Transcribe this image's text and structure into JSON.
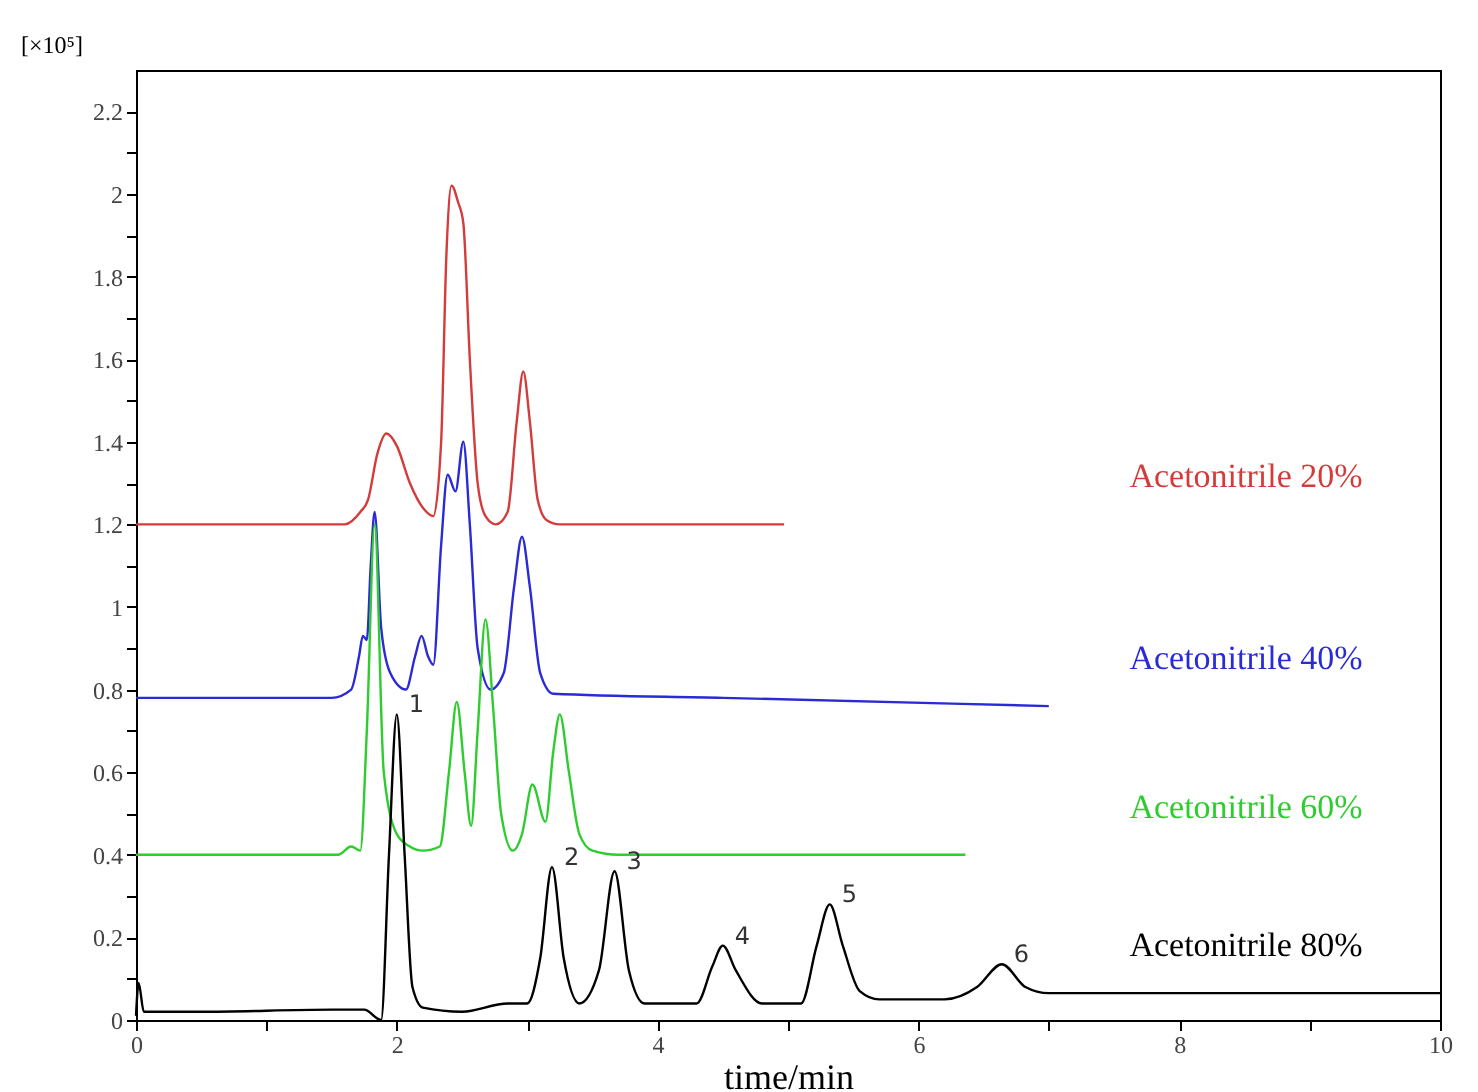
{
  "chart_data": {
    "type": "line",
    "xlabel": "time/min",
    "ylabel": "[×10⁵]",
    "xlim": [
      0,
      10
    ],
    "ylim": [
      0,
      2.3
    ],
    "xticks": [
      0,
      {
        "value": 1,
        "label": null
      },
      2,
      {
        "value": 3,
        "label": null
      },
      4,
      {
        "value": 5,
        "label": null
      },
      6,
      {
        "value": 7,
        "label": null
      },
      8,
      {
        "value": 9,
        "label": null
      },
      10
    ],
    "yticks": [
      0,
      {
        "value": 0.1,
        "label": null
      },
      0.2,
      {
        "value": 0.3,
        "label": null
      },
      0.4,
      {
        "value": 0.5,
        "label": null
      },
      0.6,
      {
        "value": 0.7,
        "label": null
      },
      0.8,
      {
        "value": 0.9,
        "label": null
      },
      1,
      {
        "value": 1.1,
        "label": null
      },
      1.2,
      {
        "value": 1.3,
        "label": null
      },
      1.4,
      {
        "value": 1.5,
        "label": null
      },
      1.6,
      {
        "value": 1.7,
        "label": null
      },
      1.8,
      {
        "value": 1.9,
        "label": null
      },
      2,
      {
        "value": 2.1,
        "label": null
      },
      2.2
    ],
    "grid": false,
    "legend": false,
    "marker": "none",
    "line_style": "solid",
    "series": [
      {
        "name": "Acetonitrile 20%",
        "color": "#d43c3c",
        "x": [
          0,
          1.6,
          1.72,
          1.78,
          1.85,
          1.92,
          2.0,
          2.1,
          2.2,
          2.28,
          2.34,
          2.38,
          2.42,
          2.47,
          2.51,
          2.56,
          2.62,
          2.68,
          2.76,
          2.85,
          2.92,
          2.97,
          3.02,
          3.08,
          3.15,
          3.25,
          4.97
        ],
        "values": [
          1.2,
          1.2,
          1.23,
          1.26,
          1.37,
          1.42,
          1.39,
          1.3,
          1.24,
          1.22,
          1.4,
          1.85,
          2.02,
          1.98,
          1.93,
          1.6,
          1.3,
          1.22,
          1.2,
          1.23,
          1.45,
          1.57,
          1.45,
          1.26,
          1.21,
          1.2,
          1.2
        ]
      },
      {
        "name": "Acetonitrile 40%",
        "color": "#2a2ad6",
        "x": [
          0,
          1.5,
          1.65,
          1.71,
          1.74,
          1.77,
          1.8,
          1.83,
          1.88,
          1.95,
          2.07,
          2.14,
          2.19,
          2.24,
          2.28,
          2.34,
          2.39,
          2.45,
          2.51,
          2.56,
          2.62,
          2.72,
          2.82,
          2.9,
          2.96,
          3.02,
          3.1,
          3.2,
          4.5,
          7.0
        ],
        "values": [
          0.78,
          0.78,
          0.8,
          0.88,
          0.93,
          0.92,
          1.1,
          1.23,
          0.95,
          0.84,
          0.8,
          0.88,
          0.93,
          0.88,
          0.86,
          1.15,
          1.32,
          1.28,
          1.4,
          1.2,
          0.9,
          0.8,
          0.84,
          1.05,
          1.17,
          1.05,
          0.84,
          0.79,
          0.78,
          0.76
        ]
      },
      {
        "name": "Acetonitrile 60%",
        "color": "#2ecc2e",
        "x": [
          0,
          1.55,
          1.65,
          1.72,
          1.77,
          1.83,
          1.9,
          2.0,
          2.1,
          2.2,
          2.33,
          2.4,
          2.46,
          2.52,
          2.57,
          2.62,
          2.68,
          2.74,
          2.8,
          2.89,
          2.96,
          3.04,
          3.14,
          3.2,
          3.25,
          3.32,
          3.4,
          3.5,
          3.7,
          6.36
        ],
        "values": [
          0.4,
          0.4,
          0.42,
          0.41,
          0.7,
          1.2,
          0.6,
          0.45,
          0.42,
          0.41,
          0.42,
          0.6,
          0.77,
          0.6,
          0.47,
          0.7,
          0.97,
          0.75,
          0.5,
          0.41,
          0.45,
          0.57,
          0.48,
          0.65,
          0.74,
          0.6,
          0.45,
          0.41,
          0.4,
          0.4
        ]
      },
      {
        "name": "Acetonitrile 80%",
        "color": "#000000",
        "x": [
          0,
          0.02,
          0.06,
          0.5,
          1.5,
          1.75,
          1.88,
          1.94,
          2.0,
          2.06,
          2.12,
          2.2,
          2.5,
          2.85,
          3.0,
          3.1,
          3.19,
          3.28,
          3.4,
          3.55,
          3.67,
          3.78,
          3.9,
          4.3,
          4.42,
          4.5,
          4.6,
          4.8,
          5.1,
          5.22,
          5.32,
          5.42,
          5.55,
          5.7,
          6.2,
          6.45,
          6.64,
          6.82,
          7.0,
          10
        ],
        "values": [
          0.01,
          0.09,
          0.02,
          0.02,
          0.025,
          0.025,
          0.0,
          0.4,
          0.74,
          0.4,
          0.08,
          0.03,
          0.02,
          0.04,
          0.04,
          0.15,
          0.37,
          0.15,
          0.04,
          0.12,
          0.36,
          0.12,
          0.04,
          0.04,
          0.13,
          0.18,
          0.12,
          0.04,
          0.04,
          0.18,
          0.28,
          0.18,
          0.07,
          0.05,
          0.05,
          0.08,
          0.135,
          0.08,
          0.065,
          0.065
        ]
      }
    ],
    "annotations": [
      {
        "text": "1",
        "x": 2.0,
        "y": 0.74
      },
      {
        "text": "2",
        "x": 3.19,
        "y": 0.37
      },
      {
        "text": "3",
        "x": 3.67,
        "y": 0.36
      },
      {
        "text": "4",
        "x": 4.5,
        "y": 0.18
      },
      {
        "text": "5",
        "x": 5.32,
        "y": 0.28
      },
      {
        "text": "6",
        "x": 6.64,
        "y": 0.135
      }
    ]
  }
}
